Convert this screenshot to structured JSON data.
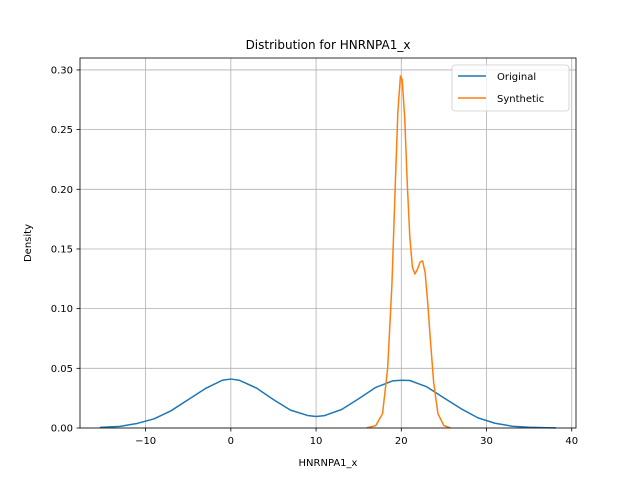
{
  "chart_data": {
    "type": "line",
    "title": "Distribution for HNRNPA1_x",
    "xlabel": "HNRNPA1_x",
    "ylabel": "Density",
    "xlim": [
      -17.7,
      40.5
    ],
    "ylim": [
      0.0,
      0.31
    ],
    "xticks": [
      -10,
      0,
      10,
      20,
      30,
      40
    ],
    "xtick_labels": [
      "−10",
      "0",
      "10",
      "20",
      "30",
      "40"
    ],
    "yticks": [
      0.0,
      0.05,
      0.1,
      0.15,
      0.2,
      0.25,
      0.3
    ],
    "ytick_labels": [
      "0.00",
      "0.05",
      "0.10",
      "0.15",
      "0.20",
      "0.25",
      "0.30"
    ],
    "grid": true,
    "legend_position": "top-right",
    "series": [
      {
        "name": "Original",
        "color": "#1f77b4",
        "x": [
          -15.3,
          -13,
          -11,
          -9,
          -7,
          -5,
          -3,
          -1,
          0,
          1,
          3,
          5,
          7,
          9,
          10,
          11,
          13,
          15,
          17,
          19,
          20,
          21,
          23,
          25,
          27,
          29,
          31,
          33,
          35,
          37,
          38.1
        ],
        "y": [
          0.0005,
          0.0014,
          0.0038,
          0.0077,
          0.0145,
          0.0238,
          0.033,
          0.04,
          0.041,
          0.04,
          0.0335,
          0.0238,
          0.015,
          0.0105,
          0.0096,
          0.0104,
          0.0155,
          0.0245,
          0.034,
          0.0395,
          0.04,
          0.0398,
          0.0345,
          0.0252,
          0.0162,
          0.0085,
          0.004,
          0.0015,
          0.0006,
          0.0002,
          0.0001
        ]
      },
      {
        "name": "Synthetic",
        "color": "#ff7f0e",
        "x": [
          16.0,
          17.0,
          17.8,
          18.4,
          18.9,
          19.3,
          19.6,
          19.9,
          20.1,
          20.4,
          20.7,
          21.0,
          21.3,
          21.6,
          21.9,
          22.2,
          22.5,
          22.8,
          23.1,
          23.4,
          23.8,
          24.3,
          25.0,
          25.7
        ],
        "y": [
          0.0002,
          0.002,
          0.012,
          0.05,
          0.12,
          0.205,
          0.265,
          0.295,
          0.292,
          0.26,
          0.205,
          0.16,
          0.135,
          0.129,
          0.133,
          0.139,
          0.14,
          0.13,
          0.105,
          0.075,
          0.038,
          0.012,
          0.002,
          0.0002
        ]
      }
    ]
  }
}
